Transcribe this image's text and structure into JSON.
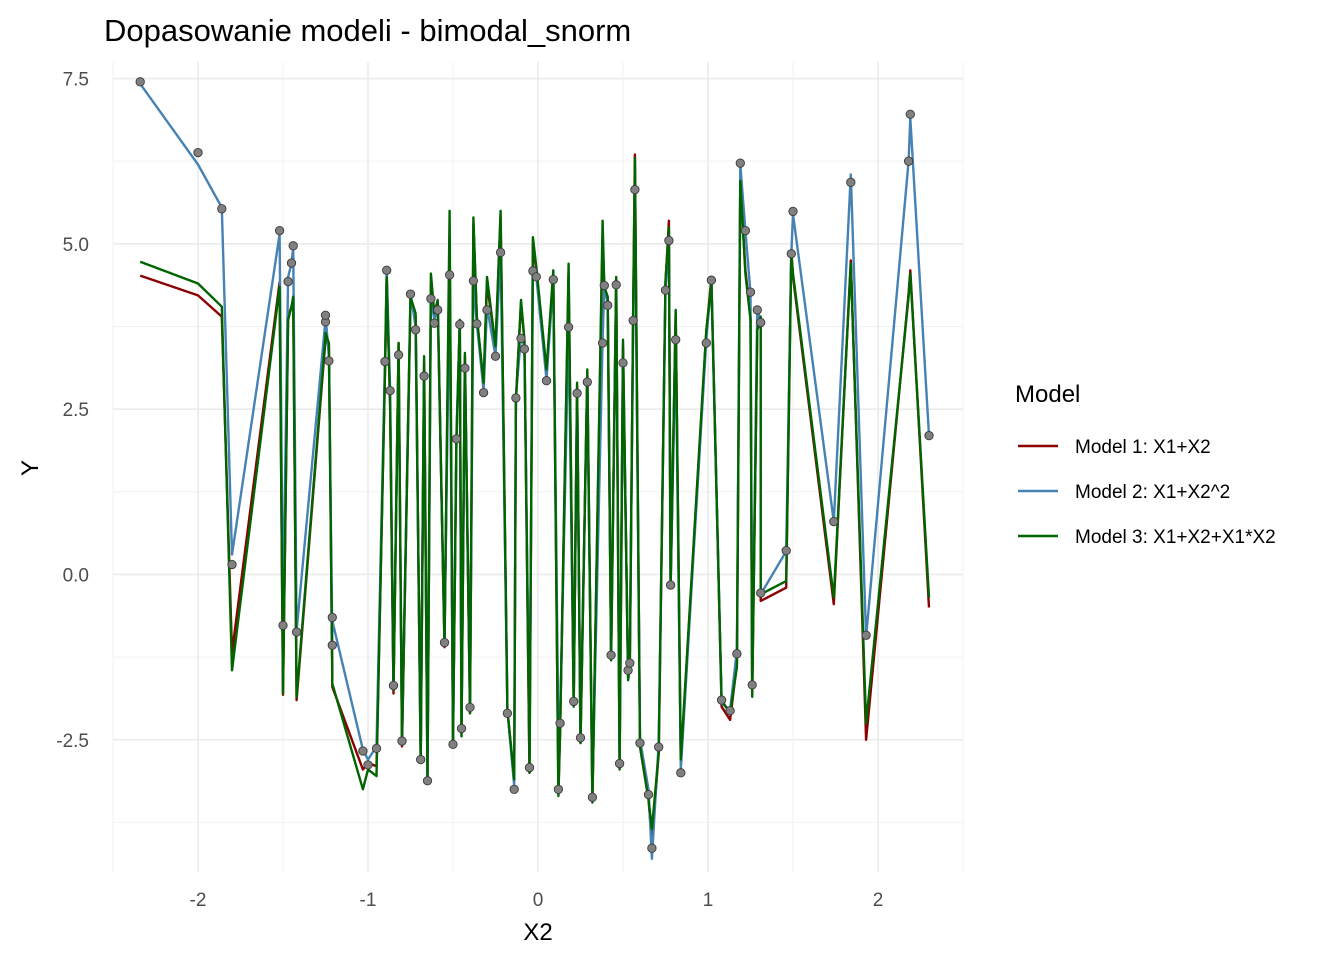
{
  "chart_data": {
    "type": "line",
    "title": "Dopasowanie modeli - bimodal_snorm",
    "xlabel": "X2",
    "ylabel": "Y",
    "xlim": [
      -2.5,
      2.5
    ],
    "ylim": [
      -4.5,
      7.75
    ],
    "x_ticks": [
      -2,
      -1,
      0,
      1,
      2
    ],
    "x_tick_labels": [
      "-2",
      "-1",
      "0",
      "1",
      "2"
    ],
    "y_ticks": [
      -2.5,
      0,
      2.5,
      5,
      7.5
    ],
    "y_tick_labels": [
      "-2.5",
      "0.0",
      "2.5",
      "5.0",
      "7.5"
    ],
    "grid": true,
    "legend": {
      "title": "Model",
      "placement": "right",
      "entries": [
        "Model 1: X1+X2",
        "Model 2: X1+X2^2",
        "Model 3: X1+X2+X1*X2"
      ]
    },
    "points": {
      "x": [
        -2.34,
        -2.0,
        -1.86,
        -1.8,
        -1.52,
        -1.5,
        -1.47,
        -1.45,
        -1.44,
        -1.42,
        -1.25,
        -1.25,
        -1.23,
        -1.21,
        -1.21,
        -1.03,
        -1.0,
        -0.95,
        -0.9,
        -0.89,
        -0.87,
        -0.85,
        -0.82,
        -0.8,
        -0.75,
        -0.72,
        -0.69,
        -0.67,
        -0.65,
        -0.63,
        -0.61,
        -0.59,
        -0.55,
        -0.52,
        -0.5,
        -0.48,
        -0.46,
        -0.45,
        -0.43,
        -0.4,
        -0.38,
        -0.36,
        -0.32,
        -0.3,
        -0.25,
        -0.22,
        -0.18,
        -0.14,
        -0.13,
        -0.1,
        -0.08,
        -0.05,
        -0.03,
        -0.01,
        0.05,
        0.09,
        0.12,
        0.13,
        0.18,
        0.21,
        0.23,
        0.25,
        0.29,
        0.32,
        0.38,
        0.39,
        0.41,
        0.43,
        0.46,
        0.48,
        0.5,
        0.53,
        0.54,
        0.56,
        0.57,
        0.6,
        0.65,
        0.67,
        0.71,
        0.75,
        0.77,
        0.78,
        0.81,
        0.84,
        0.99,
        1.02,
        1.08,
        1.13,
        1.17,
        1.19,
        1.22,
        1.25,
        1.26,
        1.29,
        1.31,
        1.31,
        1.46,
        1.49,
        1.5,
        1.74,
        1.84,
        1.93,
        2.18,
        2.19,
        2.3
      ],
      "y": [
        7.45,
        6.38,
        5.53,
        0.15,
        5.2,
        -0.77,
        4.43,
        4.71,
        4.97,
        -0.87,
        3.82,
        3.92,
        3.23,
        -1.07,
        -0.65,
        -2.67,
        -2.88,
        -2.63,
        3.22,
        4.6,
        2.78,
        -1.68,
        3.32,
        -2.52,
        4.24,
        3.7,
        -2.8,
        3.0,
        -3.12,
        4.17,
        3.8,
        4.0,
        -1.03,
        4.53,
        -2.57,
        2.05,
        3.78,
        -2.33,
        3.12,
        -2.01,
        4.44,
        3.79,
        2.75,
        4.0,
        3.3,
        4.87,
        -2.1,
        -3.25,
        2.67,
        3.57,
        3.41,
        -2.92,
        4.59,
        4.5,
        2.93,
        4.46,
        -3.25,
        -2.25,
        3.74,
        -1.92,
        2.74,
        -2.47,
        2.91,
        -3.37,
        3.5,
        4.37,
        4.07,
        -1.22,
        4.38,
        -2.86,
        3.2,
        -1.45,
        -1.34,
        3.84,
        5.82,
        -2.55,
        -3.33,
        -4.14,
        -2.61,
        4.3,
        5.05,
        -0.16,
        3.55,
        -3.0,
        3.5,
        4.45,
        -1.9,
        -2.06,
        -1.2,
        6.22,
        5.2,
        4.27,
        -1.67,
        4.0,
        3.81,
        -0.28,
        0.36,
        4.85,
        5.49,
        0.8,
        5.93,
        -0.92,
        6.25,
        6.96,
        2.1
      ]
    },
    "series": [
      {
        "name": "Model 1: X1+X2",
        "color": "#8b0000",
        "x": [
          -2.34,
          -2.0,
          -1.86,
          -1.8,
          -1.52,
          -1.5,
          -1.47,
          -1.45,
          -1.44,
          -1.42,
          -1.25,
          -1.25,
          -1.23,
          -1.21,
          -1.21,
          -1.03,
          -1.0,
          -0.95,
          -0.9,
          -0.89,
          -0.87,
          -0.85,
          -0.82,
          -0.8,
          -0.75,
          -0.72,
          -0.69,
          -0.67,
          -0.65,
          -0.63,
          -0.61,
          -0.59,
          -0.55,
          -0.52,
          -0.5,
          -0.48,
          -0.46,
          -0.45,
          -0.43,
          -0.4,
          -0.38,
          -0.36,
          -0.32,
          -0.3,
          -0.25,
          -0.22,
          -0.18,
          -0.14,
          -0.13,
          -0.1,
          -0.08,
          -0.05,
          -0.03,
          -0.01,
          0.05,
          0.09,
          0.12,
          0.13,
          0.18,
          0.21,
          0.23,
          0.25,
          0.29,
          0.32,
          0.38,
          0.39,
          0.41,
          0.43,
          0.46,
          0.48,
          0.5,
          0.53,
          0.54,
          0.56,
          0.57,
          0.6,
          0.65,
          0.67,
          0.71,
          0.75,
          0.77,
          0.78,
          0.81,
          0.84,
          0.99,
          1.02,
          1.08,
          1.13,
          1.17,
          1.19,
          1.22,
          1.25,
          1.26,
          1.29,
          1.31,
          1.31,
          1.46,
          1.49,
          1.5,
          1.74,
          1.84,
          1.93,
          2.18,
          2.19,
          2.3
        ],
        "y": [
          4.52,
          4.22,
          3.9,
          -1.18,
          4.42,
          -1.82,
          3.9,
          4.05,
          4.15,
          -1.9,
          3.55,
          3.6,
          3.45,
          -1.55,
          -1.7,
          -2.95,
          -2.85,
          -2.9,
          3.05,
          4.5,
          2.6,
          -1.8,
          3.5,
          -2.6,
          4.15,
          3.9,
          -2.85,
          3.2,
          -3.05,
          4.4,
          3.95,
          4.1,
          -1.1,
          5.1,
          -2.5,
          1.95,
          3.85,
          -2.4,
          3.3,
          -2.1,
          5.3,
          3.9,
          2.85,
          4.4,
          3.45,
          5.4,
          -2.05,
          -3.1,
          2.65,
          4.1,
          3.55,
          -3.0,
          5.0,
          4.6,
          3.05,
          4.55,
          -3.3,
          -2.35,
          4.55,
          -1.95,
          2.85,
          -2.55,
          3.05,
          -3.4,
          5.1,
          4.35,
          4.15,
          -1.25,
          4.45,
          -2.9,
          3.45,
          -1.55,
          -1.35,
          4.0,
          6.35,
          -2.6,
          -3.4,
          -4.05,
          -2.7,
          4.4,
          5.35,
          -0.2,
          3.95,
          -2.85,
          3.65,
          4.5,
          -2.0,
          -2.2,
          -1.35,
          5.95,
          4.6,
          3.9,
          -1.8,
          3.7,
          3.85,
          -0.4,
          -0.2,
          4.9,
          4.5,
          -0.45,
          4.75,
          -2.5,
          4.25,
          4.6,
          -0.5
        ]
      },
      {
        "name": "Model 2: X1+X2^2",
        "color": "#4682b4",
        "x": [
          -2.34,
          -2.0,
          -1.86,
          -1.8,
          -1.52,
          -1.5,
          -1.47,
          -1.45,
          -1.44,
          -1.42,
          -1.25,
          -1.25,
          -1.23,
          -1.21,
          -1.21,
          -1.03,
          -1.0,
          -0.95,
          -0.9,
          -0.89,
          -0.87,
          -0.85,
          -0.82,
          -0.8,
          -0.75,
          -0.72,
          -0.69,
          -0.67,
          -0.65,
          -0.63,
          -0.61,
          -0.59,
          -0.55,
          -0.52,
          -0.5,
          -0.48,
          -0.46,
          -0.45,
          -0.43,
          -0.4,
          -0.38,
          -0.36,
          -0.32,
          -0.3,
          -0.25,
          -0.22,
          -0.18,
          -0.14,
          -0.13,
          -0.1,
          -0.08,
          -0.05,
          -0.03,
          -0.01,
          0.05,
          0.09,
          0.12,
          0.13,
          0.18,
          0.21,
          0.23,
          0.25,
          0.29,
          0.32,
          0.38,
          0.39,
          0.41,
          0.43,
          0.46,
          0.48,
          0.5,
          0.53,
          0.54,
          0.56,
          0.57,
          0.6,
          0.65,
          0.67,
          0.71,
          0.75,
          0.77,
          0.78,
          0.81,
          0.84,
          0.99,
          1.02,
          1.08,
          1.13,
          1.17,
          1.19,
          1.22,
          1.25,
          1.26,
          1.29,
          1.31,
          1.31,
          1.46,
          1.49,
          1.5,
          1.74,
          1.84,
          1.93,
          2.18,
          2.19,
          2.3
        ],
        "y": [
          7.42,
          6.2,
          5.55,
          0.3,
          5.15,
          -0.7,
          4.5,
          4.7,
          4.95,
          -0.85,
          3.85,
          3.92,
          3.3,
          -1.0,
          -0.7,
          -2.65,
          -2.8,
          -2.6,
          3.25,
          4.6,
          2.8,
          -1.65,
          3.35,
          -2.5,
          4.25,
          3.75,
          -2.75,
          3.05,
          -3.15,
          4.2,
          3.85,
          4.05,
          -1.0,
          4.55,
          -2.55,
          2.1,
          3.8,
          -2.3,
          3.15,
          -1.95,
          4.45,
          3.8,
          2.78,
          4.05,
          3.3,
          4.9,
          -2.05,
          -3.2,
          2.7,
          3.6,
          3.45,
          -2.45,
          4.6,
          4.5,
          2.95,
          4.45,
          -2.45,
          -2.2,
          3.75,
          -1.9,
          2.75,
          -2.45,
          2.95,
          -3.3,
          3.55,
          4.35,
          4.1,
          -1.2,
          4.4,
          -2.8,
          3.2,
          -1.45,
          -1.3,
          3.85,
          5.8,
          -2.5,
          -3.25,
          -4.3,
          -2.55,
          4.3,
          5.05,
          -0.15,
          3.55,
          -2.95,
          3.55,
          4.45,
          -1.95,
          -2.05,
          -1.15,
          6.2,
          5.2,
          4.25,
          -1.65,
          4.05,
          3.8,
          -0.3,
          0.35,
          4.85,
          5.45,
          0.8,
          6.05,
          -0.95,
          6.25,
          6.9,
          2.1
        ]
      },
      {
        "name": "Model 3: X1+X2+X1*X2",
        "color": "#006400",
        "x": [
          -2.34,
          -2.0,
          -1.86,
          -1.8,
          -1.52,
          -1.5,
          -1.47,
          -1.45,
          -1.44,
          -1.42,
          -1.25,
          -1.25,
          -1.23,
          -1.21,
          -1.21,
          -1.03,
          -1.0,
          -0.95,
          -0.9,
          -0.89,
          -0.87,
          -0.85,
          -0.82,
          -0.8,
          -0.75,
          -0.72,
          -0.69,
          -0.67,
          -0.65,
          -0.63,
          -0.61,
          -0.59,
          -0.55,
          -0.52,
          -0.5,
          -0.48,
          -0.46,
          -0.45,
          -0.43,
          -0.4,
          -0.38,
          -0.36,
          -0.32,
          -0.3,
          -0.25,
          -0.22,
          -0.18,
          -0.14,
          -0.13,
          -0.1,
          -0.08,
          -0.05,
          -0.03,
          -0.01,
          0.05,
          0.09,
          0.12,
          0.13,
          0.18,
          0.21,
          0.23,
          0.25,
          0.29,
          0.32,
          0.38,
          0.39,
          0.41,
          0.43,
          0.46,
          0.48,
          0.5,
          0.53,
          0.54,
          0.56,
          0.57,
          0.6,
          0.65,
          0.67,
          0.71,
          0.75,
          0.77,
          0.78,
          0.81,
          0.84,
          0.99,
          1.02,
          1.08,
          1.13,
          1.17,
          1.19,
          1.22,
          1.25,
          1.26,
          1.29,
          1.31,
          1.31,
          1.46,
          1.49,
          1.5,
          1.74,
          1.84,
          1.93,
          2.18,
          2.19,
          2.3
        ],
        "y": [
          4.73,
          4.4,
          4.05,
          -1.45,
          4.35,
          -1.8,
          3.85,
          4.05,
          4.2,
          -1.85,
          3.6,
          3.65,
          3.5,
          -1.6,
          -1.65,
          -3.25,
          -2.95,
          -3.05,
          3.1,
          4.5,
          2.55,
          -1.75,
          3.5,
          -2.55,
          4.2,
          3.95,
          -2.8,
          3.3,
          -3.1,
          4.55,
          3.95,
          4.15,
          -1.05,
          5.5,
          -2.55,
          2.0,
          3.85,
          -2.45,
          3.35,
          -2.1,
          5.4,
          3.9,
          2.9,
          4.5,
          3.45,
          5.5,
          -2.05,
          -3.1,
          2.6,
          4.15,
          3.55,
          -3.0,
          5.1,
          4.65,
          3.1,
          4.6,
          -3.35,
          -2.4,
          4.7,
          -2.0,
          2.9,
          -2.55,
          3.1,
          -3.45,
          5.35,
          4.35,
          4.2,
          -1.3,
          4.5,
          -2.95,
          3.55,
          -1.6,
          -1.4,
          4.05,
          6.3,
          -2.6,
          -3.4,
          -3.85,
          -2.7,
          4.45,
          5.25,
          -0.2,
          4.0,
          -2.8,
          3.7,
          4.4,
          -1.9,
          -2.1,
          -1.4,
          5.95,
          4.55,
          3.85,
          -1.85,
          3.7,
          3.9,
          -0.3,
          -0.1,
          4.85,
          4.55,
          -0.35,
          4.7,
          -2.25,
          4.2,
          4.55,
          -0.35
        ]
      }
    ]
  }
}
